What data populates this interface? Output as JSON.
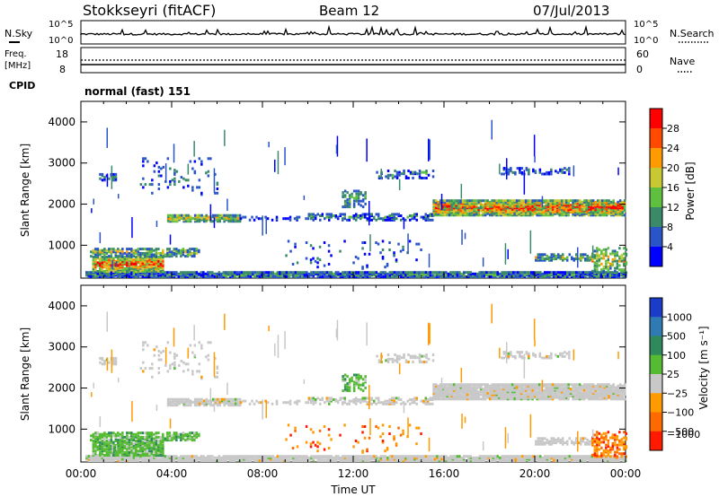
{
  "header": {
    "station": "Stokkseyri (fitACF)",
    "beam": "Beam 12",
    "date": "07/Jul/2013"
  },
  "panels": {
    "nsky_label": "N.Sky",
    "nsearch_label": "N.Search",
    "freq_label": "Freq.",
    "freq_unit": "[MHz]",
    "nave_label": "Nave",
    "cpid_label": "CPID",
    "cpid_text": "normal (fast) 151",
    "nsky_ticks": [
      "10^5",
      "10^0"
    ],
    "nsearch_ticks": [
      "10^5",
      "10^0"
    ],
    "freq_ticks": [
      "18",
      "8"
    ],
    "nave_ticks": [
      "60",
      "0"
    ]
  },
  "chart_data": [
    {
      "type": "heatmap",
      "panel": "power",
      "xlabel": "",
      "ylabel": "Slant Range [km]",
      "ylim": [
        200,
        4500
      ],
      "yticks": [
        "1000",
        "2000",
        "3000",
        "4000"
      ],
      "colorbar_label": "Power [dB]",
      "colorbar_ticks": [
        "4",
        "8",
        "12",
        "16",
        "20",
        "24",
        "28"
      ],
      "colorbar_colors": [
        "#0000ff",
        "#2a55c8",
        "#3a8a6a",
        "#5fbf3f",
        "#c8c832",
        "#ff9a00",
        "#ff4a00",
        "#ff0000"
      ],
      "features": [
        {
          "start": "00:30",
          "end": "03:30",
          "range": [
            300,
            700
          ],
          "level": "high"
        },
        {
          "start": "01:00",
          "end": "05:00",
          "range": [
            700,
            900
          ],
          "level": "medium"
        },
        {
          "start": "04:00",
          "end": "07:00",
          "range": [
            1550,
            1700
          ],
          "level": "medium"
        },
        {
          "start": "16:00",
          "end": "23:00",
          "range": [
            1700,
            2050
          ],
          "level": "high"
        }
      ]
    },
    {
      "type": "heatmap",
      "panel": "velocity",
      "xlabel": "Time UT",
      "ylabel": "Slant Range [km]",
      "ylim": [
        200,
        4500
      ],
      "yticks": [
        "1000",
        "2000",
        "3000",
        "4000"
      ],
      "xticks": [
        "00:00",
        "04:00",
        "08:00",
        "12:00",
        "16:00",
        "20:00",
        "00:00"
      ],
      "colorbar_label": "Velocity [m s⁻¹]",
      "colorbar_ticks": [
        "1000",
        "500",
        "100",
        "25",
        "−25",
        "−100",
        "−500",
        "−1000"
      ],
      "colorbar_colors": [
        "#1a3cc8",
        "#2e7bb4",
        "#2e8a5a",
        "#55bb33",
        "#c8c8c8",
        "#ff9a00",
        "#ff6a00",
        "#ff1a00"
      ],
      "features": [
        {
          "start": "00:30",
          "end": "04:30",
          "range": [
            300,
            900
          ],
          "level": "green"
        },
        {
          "start": "04:00",
          "end": "07:00",
          "range": [
            1550,
            1700
          ],
          "level": "grey"
        },
        {
          "start": "15:30",
          "end": "23:59",
          "range": [
            1700,
            2100
          ],
          "level": "grey"
        }
      ]
    }
  ]
}
